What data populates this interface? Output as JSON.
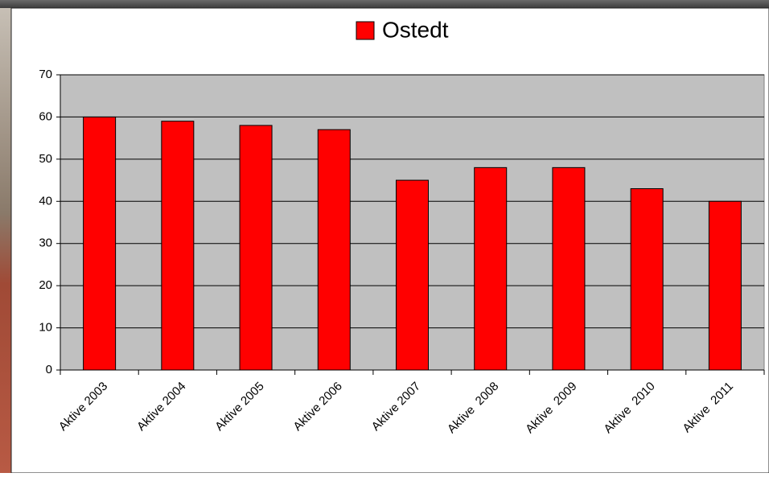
{
  "chart_data": {
    "type": "bar",
    "legend": "Ostedt",
    "categories": [
      "Aktive 2003",
      "Aktive 2004",
      "Aktive 2005",
      "Aktive 2006",
      "Aktive 2007",
      "Aktive  2008",
      "Aktive  2009",
      "Aktive  2010",
      "Aktive  2011"
    ],
    "values": [
      60,
      59,
      58,
      57,
      45,
      48,
      48,
      43,
      40
    ],
    "color": "#ff0000",
    "ylim": [
      0,
      70
    ],
    "yticks": [
      0,
      10,
      20,
      30,
      40,
      50,
      60,
      70
    ],
    "grid": true
  }
}
